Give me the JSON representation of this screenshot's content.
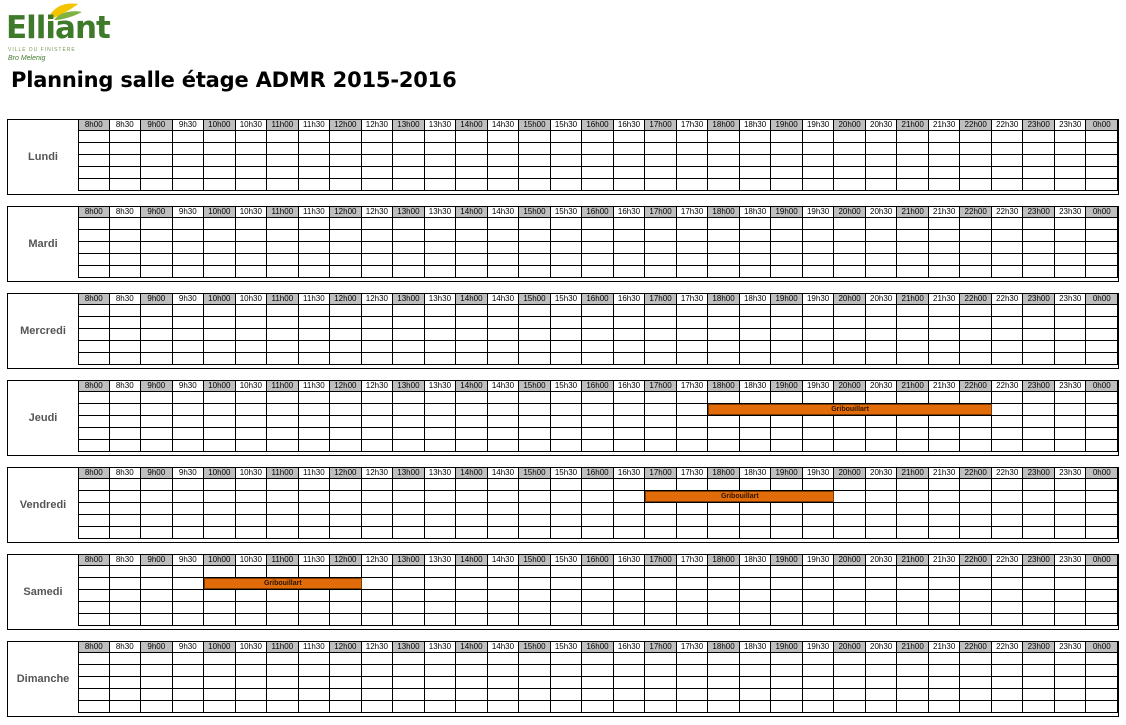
{
  "logo": {
    "name": "Elliant",
    "subtitle": "VILLE DU FINISTÈRE",
    "tagline": "Bro Melenig"
  },
  "title": "Planning salle étage ADMR 2015-2016",
  "time_slots": [
    "8h00",
    "8h30",
    "9h00",
    "9h30",
    "10h00",
    "10h30",
    "11h00",
    "11h30",
    "12h00",
    "12h30",
    "13h00",
    "13h30",
    "14h00",
    "14h30",
    "15h00",
    "15h30",
    "16h00",
    "16h30",
    "17h00",
    "17h30",
    "18h00",
    "18h30",
    "19h00",
    "19h30",
    "20h00",
    "20h30",
    "21h00",
    "21h30",
    "22h00",
    "22h30",
    "23h00",
    "23h30",
    "0h00"
  ],
  "days": [
    {
      "label": "Lundi",
      "bookings": []
    },
    {
      "label": "Mardi",
      "bookings": []
    },
    {
      "label": "Mercredi",
      "bookings": []
    },
    {
      "label": "Jeudi",
      "bookings": [
        {
          "label": "Gribouillart",
          "start": "18h00",
          "end": "22h30"
        }
      ]
    },
    {
      "label": "Vendredi",
      "bookings": [
        {
          "label": "Gribouillart",
          "start": "17h00",
          "end": "20h00"
        }
      ]
    },
    {
      "label": "Samedi",
      "bookings": [
        {
          "label": "Gribouillart",
          "start": "10h00",
          "end": "12h30"
        }
      ]
    },
    {
      "label": "Dimanche",
      "bookings": []
    }
  ],
  "colors": {
    "booking": "#e36c0a",
    "hour_header": "#bfbfbf",
    "logo_green": "#3f7a2a"
  }
}
